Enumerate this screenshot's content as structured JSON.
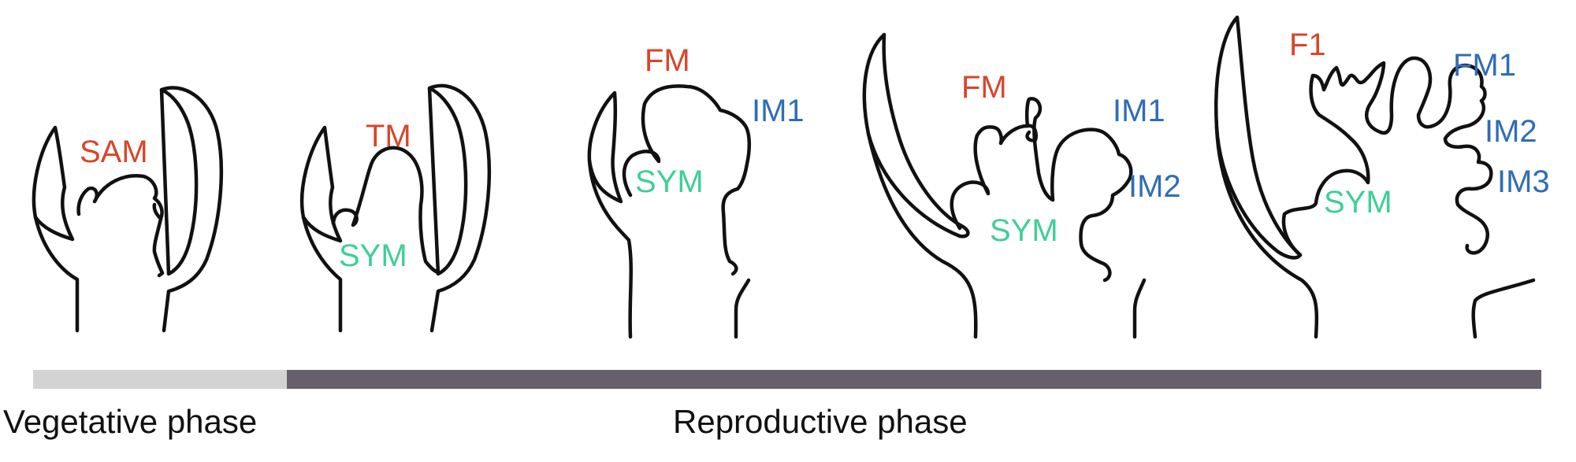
{
  "colors": {
    "meristem_red": "#d9452b",
    "meristem_green": "#3fcf96",
    "meristem_blue": "#2f6db5",
    "outline": "#111111",
    "vegetative_bar": "#d3d3d3",
    "reproductive_bar": "#675f6c"
  },
  "stages": [
    {
      "labels": {
        "sam": "SAM"
      }
    },
    {
      "labels": {
        "tm": "TM",
        "sym": "SYM"
      }
    },
    {
      "labels": {
        "fm": "FM",
        "im1": "IM1",
        "sym": "SYM"
      }
    },
    {
      "labels": {
        "fm": "FM",
        "im1": "IM1",
        "im2": "IM2",
        "sym": "SYM"
      }
    },
    {
      "labels": {
        "f1": "F1",
        "fm1": "FM1",
        "im2": "IM2",
        "im3": "IM3",
        "sym": "SYM"
      }
    }
  ],
  "timeline": {
    "vegetative_label": "Vegetative phase",
    "reproductive_label": "Reproductive phase"
  }
}
